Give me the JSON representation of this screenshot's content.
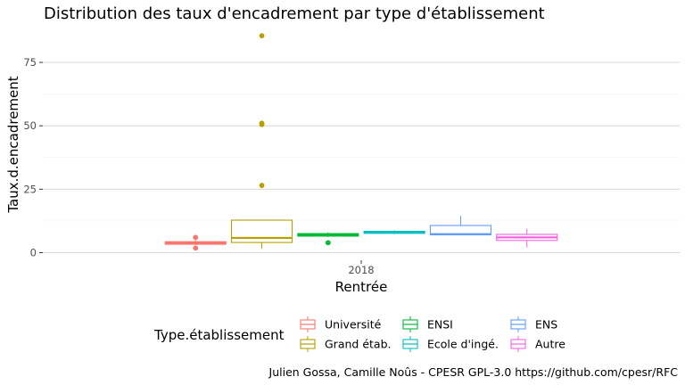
{
  "chart_data": {
    "type": "boxplot",
    "title": "Distribution des taux d'encadrement par type d'établissement",
    "xlabel": "Rentrée",
    "ylabel": "Taux.d.encadrement",
    "x_categories": [
      "2018"
    ],
    "y_ticks": [
      0,
      25,
      50,
      75
    ],
    "ylim": [
      -3,
      88
    ],
    "grid": true,
    "legend_position": "bottom",
    "legend_title": "Type.établissement",
    "caption": "Julien Gossa, Camille Noûs - CPESR GPL-3.0 https://github.com/cpesr/RFC",
    "series": [
      {
        "name": "Université",
        "color": "#F8766D",
        "min": 3,
        "q1": 3.3,
        "median": 3.8,
        "q3": 4.3,
        "max": 5,
        "outliers": [
          6,
          1.8
        ]
      },
      {
        "name": "Grand étab.",
        "color": "#B79F00",
        "min": 1.5,
        "q1": 4,
        "median": 5.8,
        "q3": 12.8,
        "max": 12.8,
        "outliers": [
          85.5,
          51,
          50.5,
          26.5
        ]
      },
      {
        "name": "ENSI",
        "color": "#00BA38",
        "min": 6.2,
        "q1": 6.5,
        "median": 7,
        "q3": 7.5,
        "max": 8,
        "outliers": [
          3.9
        ]
      },
      {
        "name": "Ecole d'ingé.",
        "color": "#00BFC4",
        "min": 7.3,
        "q1": 7.6,
        "median": 8,
        "q3": 8.4,
        "max": 8.8,
        "outliers": []
      },
      {
        "name": "ENS",
        "color": "#619CFF",
        "min": 6.8,
        "q1": 7,
        "median": 7.3,
        "q3": 10.7,
        "max": 14.5,
        "outliers": []
      },
      {
        "name": "Autre",
        "color": "#F564E3",
        "min": 2,
        "q1": 4.8,
        "median": 6,
        "q3": 7.2,
        "max": 9.5,
        "outliers": []
      }
    ]
  }
}
